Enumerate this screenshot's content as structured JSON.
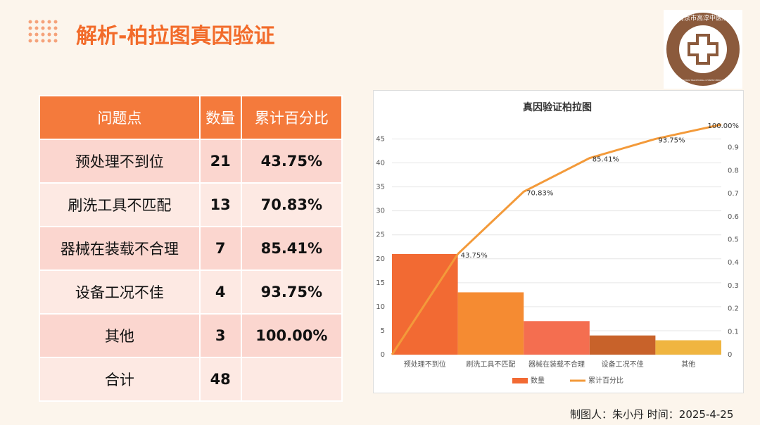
{
  "header": {
    "title": "解析-柏拉图真因验证"
  },
  "logo": {
    "name_cn": "南京市高淳中医院",
    "name_en": "NANJING GAOCHUN TRADITIONAL CHINESE MEDICINE HOSPITAL"
  },
  "table": {
    "header": [
      "问题点",
      "数量",
      "累计百分比"
    ],
    "rows": [
      [
        "预处理不到位",
        "21",
        "43.75%"
      ],
      [
        "刷洗工具不匹配",
        "13",
        "70.83%"
      ],
      [
        "器械在装载不合理",
        "7",
        "85.41%"
      ],
      [
        "设备工况不佳",
        "4",
        "93.75%"
      ],
      [
        "其他",
        "3",
        "100.00%"
      ],
      [
        "合计",
        "48"
      ]
    ]
  },
  "chart_data": {
    "type": "bar",
    "title": "真因验证柏拉图",
    "categories": [
      "预处理不到位",
      "刷洗工具不匹配",
      "器械在装载不合理",
      "设备工况不佳",
      "其他"
    ],
    "series": [
      {
        "name": "数量",
        "color": "#f26a33",
        "colors": [
          "#f26a33",
          "#f58b32",
          "#f46e50",
          "#c8622a",
          "#f0b540"
        ],
        "values": [
          21,
          13,
          7,
          4,
          3
        ]
      },
      {
        "name": "累计百分比",
        "type": "line",
        "axis": "y2",
        "color": "#f39a3a",
        "values": [
          0.4375,
          0.7083,
          0.8541,
          0.9375,
          1.0
        ],
        "value_labels": [
          "43.75%",
          "70.83%",
          "85.41%",
          "93.75%",
          "100.00%"
        ]
      }
    ],
    "ylim": [
      0,
      48
    ],
    "yticks": [
      0,
      5,
      10,
      15,
      20,
      25,
      30,
      35,
      40,
      45
    ],
    "y2lim": [
      0,
      1
    ],
    "y2ticks": [
      0,
      0.1,
      0.2,
      0.3,
      0.4,
      0.5,
      0.6,
      0.7,
      0.8,
      0.9
    ],
    "legend": "bottom",
    "grid": true
  },
  "footer": {
    "text": "制图人：朱小丹 时间：2025-4-25"
  }
}
